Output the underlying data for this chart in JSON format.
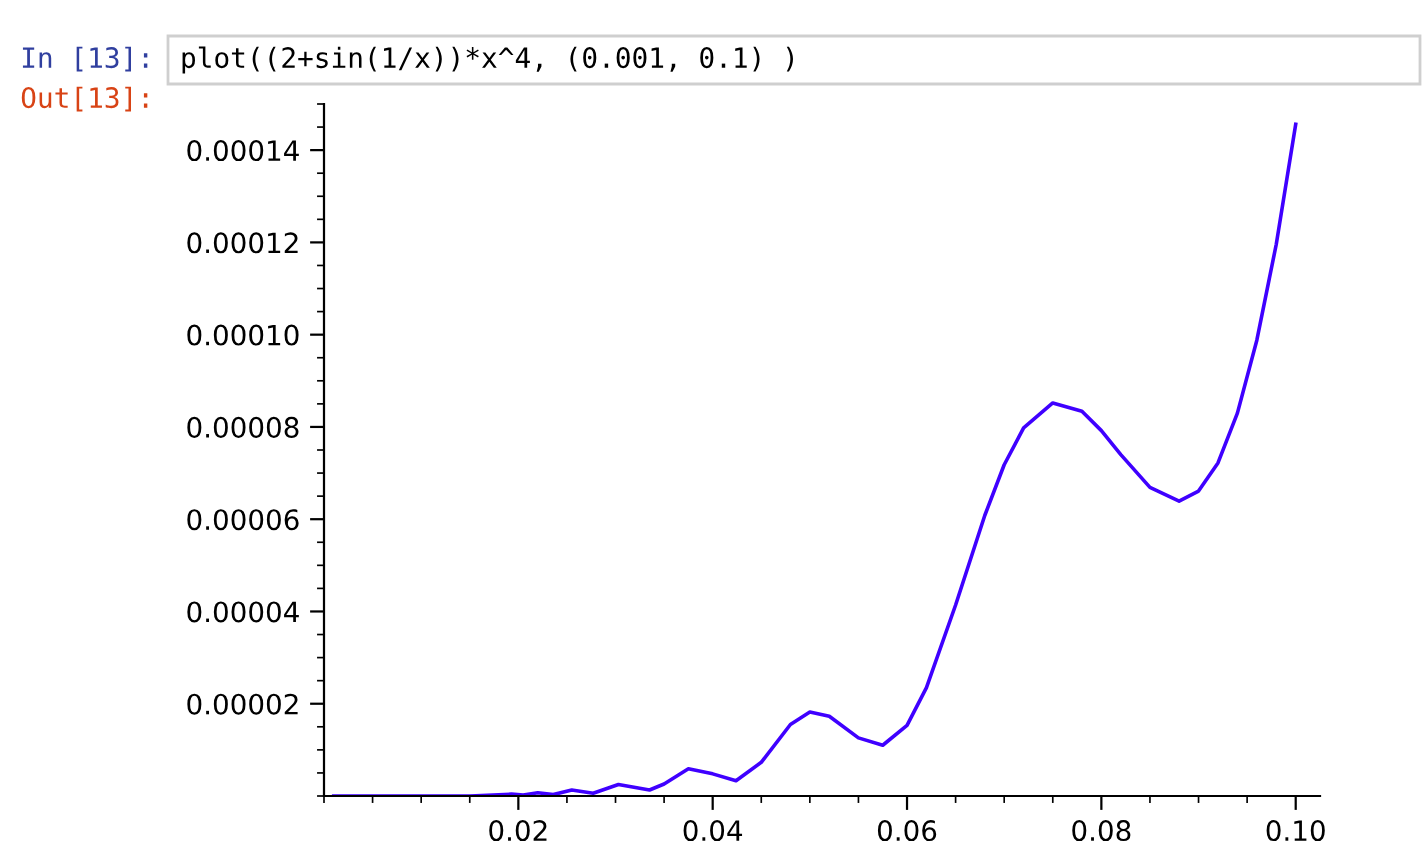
{
  "chart_data": {
    "type": "line",
    "annotations": [
      "In [13]:",
      "plot((2+sin(1/x))*x^4, (0.001, 0.1) )",
      "Out[13]:"
    ],
    "series": [
      {
        "color": "#3f00ff",
        "x": [
          0.001,
          0.01,
          0.015,
          0.0193,
          0.0205,
          0.022,
          0.0236,
          0.0255,
          0.0277,
          0.0303,
          0.0335,
          0.035,
          0.0375,
          0.04,
          0.0424,
          0.045,
          0.048,
          0.05,
          0.052,
          0.055,
          0.0575,
          0.06,
          0.062,
          0.065,
          0.068,
          0.07,
          0.072,
          0.075,
          0.078,
          0.08,
          0.082,
          0.085,
          0.088,
          0.09,
          0.092,
          0.094,
          0.096,
          0.098,
          0.1
        ],
        "values": [
          0,
          0,
          0,
          4e-07,
          2e-07,
          7e-07,
          3e-07,
          1.3e-06,
          6e-07,
          2.5e-06,
          1.3e-06,
          2.6e-06,
          5.9e-06,
          4.8e-06,
          3.3e-06,
          7.3e-06,
          1.55e-05,
          1.82e-05,
          1.73e-05,
          1.26e-05,
          1.1e-05,
          1.53e-05,
          2.35e-05,
          4.14e-05,
          6.08e-05,
          7.18e-05,
          7.98e-05,
          8.52e-05,
          8.34e-05,
          7.92e-05,
          7.4e-05,
          6.69e-05,
          6.39e-05,
          6.61e-05,
          7.22e-05,
          8.3e-05,
          9.88e-05,
          0.0001196,
          0.0001456
        ]
      }
    ],
    "xlim": [
      0,
      0.1025
    ],
    "ylim": [
      0,
      0.00015
    ],
    "xticks": [
      0.02,
      0.04,
      0.06,
      0.08,
      {
        "value": 0.1,
        "label": "0.10"
      }
    ],
    "yticks": [
      {
        "value": 2e-05,
        "label": "0.00002"
      },
      {
        "value": 4e-05,
        "label": "0.00004"
      },
      {
        "value": 6e-05,
        "label": "0.00006"
      },
      {
        "value": 8e-05,
        "label": "0.00008"
      },
      {
        "value": 0.0001,
        "label": "0.00010"
      },
      {
        "value": 0.00012,
        "label": "0.00012"
      },
      {
        "value": 0.00014,
        "label": "0.00014"
      }
    ],
    "grid": false,
    "legend": false,
    "marker": "none",
    "line_style": "solid"
  }
}
